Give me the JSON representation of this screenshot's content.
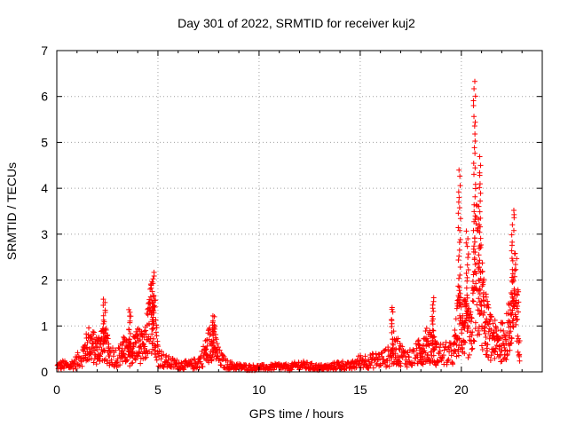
{
  "chart_data": {
    "type": "scatter",
    "title": "Day 301 of 2022, SRMTID for receiver kuj2",
    "xlabel": "GPS time / hours",
    "ylabel": "SRMTID / TECUs",
    "xlim": [
      0,
      24
    ],
    "ylim": [
      0,
      7
    ],
    "xticks": [
      0,
      5,
      10,
      15,
      20
    ],
    "yticks": [
      0,
      1,
      2,
      3,
      4,
      5,
      6,
      7
    ],
    "grid": true,
    "marker": "+",
    "color": "#ff0000",
    "series": [
      {
        "name": "SRMTID",
        "envelope": {
          "x": [
            0,
            0.3,
            0.6,
            1.0,
            1.3,
            1.6,
            2.0,
            2.3,
            2.6,
            3.0,
            3.3,
            3.6,
            4.0,
            4.3,
            4.6,
            4.8,
            5.0,
            5.3,
            5.6,
            6.0,
            6.5,
            7.0,
            7.4,
            7.7,
            8.0,
            8.4,
            8.8,
            9.5,
            10.0,
            10.5,
            11.0,
            11.5,
            12.0,
            12.5,
            13.0,
            13.5,
            14.0,
            14.5,
            15.0,
            15.5,
            16.0,
            16.5,
            16.8,
            17.2,
            17.6,
            18.0,
            18.4,
            18.8,
            19.2,
            19.6,
            19.9,
            20.2,
            20.5,
            20.7,
            20.9,
            21.1,
            21.4,
            21.8,
            22.2,
            22.5,
            22.7,
            22.9
          ],
          "y": [
            0.15,
            0.2,
            0.15,
            0.3,
            0.5,
            0.8,
            0.6,
            0.9,
            0.5,
            0.4,
            0.6,
            0.5,
            0.8,
            0.6,
            1.4,
            1.9,
            0.5,
            0.3,
            0.25,
            0.2,
            0.18,
            0.25,
            0.6,
            1.0,
            0.4,
            0.2,
            0.15,
            0.12,
            0.12,
            0.12,
            0.15,
            0.12,
            0.2,
            0.15,
            0.12,
            0.13,
            0.2,
            0.15,
            0.3,
            0.3,
            0.35,
            0.45,
            0.6,
            0.4,
            0.4,
            0.6,
            0.8,
            0.5,
            0.5,
            0.5,
            1.5,
            1.2,
            1.0,
            3.0,
            2.5,
            1.6,
            1.0,
            0.8,
            0.9,
            1.6,
            2.2,
            0.8
          ]
        },
        "peaks": [
          {
            "x": 2.35,
            "y": 1.6
          },
          {
            "x": 3.6,
            "y": 1.45
          },
          {
            "x": 4.75,
            "y": 2.2
          },
          {
            "x": 7.75,
            "y": 1.3
          },
          {
            "x": 16.6,
            "y": 1.45
          },
          {
            "x": 18.6,
            "y": 1.7
          },
          {
            "x": 19.9,
            "y": 4.4
          },
          {
            "x": 20.3,
            "y": 3.1
          },
          {
            "x": 20.65,
            "y": 6.4
          },
          {
            "x": 20.9,
            "y": 4.7
          },
          {
            "x": 22.55,
            "y": 3.6
          }
        ]
      }
    ]
  }
}
